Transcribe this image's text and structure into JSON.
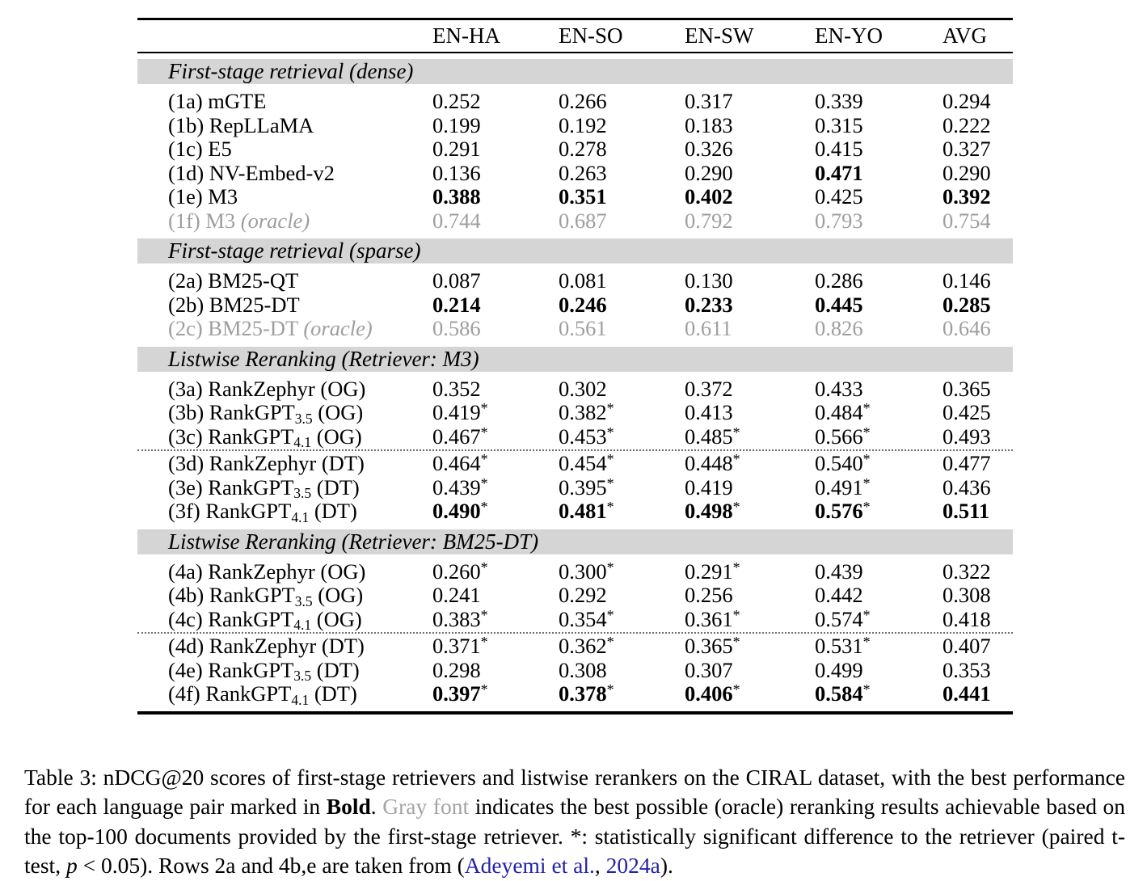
{
  "colors": {
    "section_band_bg": "#d5d5d5",
    "oracle_gray": "#9e9e9e",
    "link_blue": "#2323a8"
  },
  "table": {
    "columns": [
      "EN-HA",
      "EN-SO",
      "EN-SW",
      "EN-YO",
      "AVG"
    ],
    "sections": [
      {
        "header": "First-stage retrieval (dense)",
        "groups": [
          {
            "rows": [
              {
                "label": "(1a) mGTE",
                "sub": "",
                "tail": "",
                "italic_tail": "",
                "gray": false,
                "cells": [
                  {
                    "v": "0.252"
                  },
                  {
                    "v": "0.266"
                  },
                  {
                    "v": "0.317"
                  },
                  {
                    "v": "0.339"
                  },
                  {
                    "v": "0.294"
                  }
                ]
              },
              {
                "label": "(1b) RepLLaMA",
                "sub": "",
                "tail": "",
                "italic_tail": "",
                "gray": false,
                "cells": [
                  {
                    "v": "0.199"
                  },
                  {
                    "v": "0.192"
                  },
                  {
                    "v": "0.183"
                  },
                  {
                    "v": "0.315"
                  },
                  {
                    "v": "0.222"
                  }
                ]
              },
              {
                "label": "(1c) E5",
                "sub": "",
                "tail": "",
                "italic_tail": "",
                "gray": false,
                "cells": [
                  {
                    "v": "0.291"
                  },
                  {
                    "v": "0.278"
                  },
                  {
                    "v": "0.326"
                  },
                  {
                    "v": "0.415"
                  },
                  {
                    "v": "0.327"
                  }
                ]
              },
              {
                "label": "(1d) NV-Embed-v2",
                "sub": "",
                "tail": "",
                "italic_tail": "",
                "gray": false,
                "cells": [
                  {
                    "v": "0.136"
                  },
                  {
                    "v": "0.263"
                  },
                  {
                    "v": "0.290"
                  },
                  {
                    "v": "0.471",
                    "b": true
                  },
                  {
                    "v": "0.290"
                  }
                ]
              },
              {
                "label": "(1e) M3",
                "sub": "",
                "tail": "",
                "italic_tail": "",
                "gray": false,
                "cells": [
                  {
                    "v": "0.388",
                    "b": true
                  },
                  {
                    "v": "0.351",
                    "b": true
                  },
                  {
                    "v": "0.402",
                    "b": true
                  },
                  {
                    "v": "0.425"
                  },
                  {
                    "v": "0.392",
                    "b": true
                  }
                ]
              },
              {
                "label": "(1f) M3 ",
                "sub": "",
                "tail": "",
                "italic_tail": "(oracle)",
                "gray": true,
                "cells": [
                  {
                    "v": "0.744"
                  },
                  {
                    "v": "0.687"
                  },
                  {
                    "v": "0.792"
                  },
                  {
                    "v": "0.793"
                  },
                  {
                    "v": "0.754"
                  }
                ]
              }
            ]
          }
        ]
      },
      {
        "header": "First-stage retrieval (sparse)",
        "groups": [
          {
            "rows": [
              {
                "label": "(2a) BM25-QT",
                "sub": "",
                "tail": "",
                "italic_tail": "",
                "gray": false,
                "cells": [
                  {
                    "v": "0.087"
                  },
                  {
                    "v": "0.081"
                  },
                  {
                    "v": "0.130"
                  },
                  {
                    "v": "0.286"
                  },
                  {
                    "v": "0.146"
                  }
                ]
              },
              {
                "label": "(2b) BM25-DT",
                "sub": "",
                "tail": "",
                "italic_tail": "",
                "gray": false,
                "cells": [
                  {
                    "v": "0.214",
                    "b": true
                  },
                  {
                    "v": "0.246",
                    "b": true
                  },
                  {
                    "v": "0.233",
                    "b": true
                  },
                  {
                    "v": "0.445",
                    "b": true
                  },
                  {
                    "v": "0.285",
                    "b": true
                  }
                ]
              },
              {
                "label": "(2c) BM25-DT ",
                "sub": "",
                "tail": "",
                "italic_tail": "(oracle)",
                "gray": true,
                "cells": [
                  {
                    "v": "0.586"
                  },
                  {
                    "v": "0.561"
                  },
                  {
                    "v": "0.611"
                  },
                  {
                    "v": "0.826"
                  },
                  {
                    "v": "0.646"
                  }
                ]
              }
            ]
          }
        ]
      },
      {
        "header": "Listwise Reranking (Retriever: M3)",
        "groups": [
          {
            "rows": [
              {
                "label": "(3a) RankZephyr (OG)",
                "sub": "",
                "tail": "",
                "italic_tail": "",
                "gray": false,
                "cells": [
                  {
                    "v": "0.352"
                  },
                  {
                    "v": "0.302"
                  },
                  {
                    "v": "0.372"
                  },
                  {
                    "v": "0.433"
                  },
                  {
                    "v": "0.365"
                  }
                ]
              },
              {
                "label": "(3b) RankGPT",
                "sub": "3.5",
                "tail": " (OG)",
                "italic_tail": "",
                "gray": false,
                "cells": [
                  {
                    "v": "0.419",
                    "s": true
                  },
                  {
                    "v": "0.382",
                    "s": true
                  },
                  {
                    "v": "0.413"
                  },
                  {
                    "v": "0.484",
                    "s": true
                  },
                  {
                    "v": "0.425"
                  }
                ]
              },
              {
                "label": "(3c) RankGPT",
                "sub": "4.1",
                "tail": " (OG)",
                "italic_tail": "",
                "gray": false,
                "cells": [
                  {
                    "v": "0.467",
                    "s": true
                  },
                  {
                    "v": "0.453",
                    "s": true
                  },
                  {
                    "v": "0.485",
                    "s": true
                  },
                  {
                    "v": "0.566",
                    "s": true
                  },
                  {
                    "v": "0.493"
                  }
                ]
              }
            ]
          },
          {
            "rows": [
              {
                "label": "(3d) RankZephyr (DT)",
                "sub": "",
                "tail": "",
                "italic_tail": "",
                "gray": false,
                "cells": [
                  {
                    "v": "0.464",
                    "s": true
                  },
                  {
                    "v": "0.454",
                    "s": true
                  },
                  {
                    "v": "0.448",
                    "s": true
                  },
                  {
                    "v": "0.540",
                    "s": true
                  },
                  {
                    "v": "0.477"
                  }
                ]
              },
              {
                "label": "(3e) RankGPT",
                "sub": "3.5",
                "tail": " (DT)",
                "italic_tail": "",
                "gray": false,
                "cells": [
                  {
                    "v": "0.439",
                    "s": true
                  },
                  {
                    "v": "0.395",
                    "s": true
                  },
                  {
                    "v": "0.419"
                  },
                  {
                    "v": "0.491",
                    "s": true
                  },
                  {
                    "v": "0.436"
                  }
                ]
              },
              {
                "label": "(3f) RankGPT",
                "sub": "4.1",
                "tail": " (DT)",
                "italic_tail": "",
                "gray": false,
                "cells": [
                  {
                    "v": "0.490",
                    "b": true,
                    "s": true
                  },
                  {
                    "v": "0.481",
                    "b": true,
                    "s": true
                  },
                  {
                    "v": "0.498",
                    "b": true,
                    "s": true
                  },
                  {
                    "v": "0.576",
                    "b": true,
                    "s": true
                  },
                  {
                    "v": "0.511",
                    "b": true
                  }
                ]
              }
            ]
          }
        ]
      },
      {
        "header": "Listwise Reranking (Retriever: BM25-DT)",
        "groups": [
          {
            "rows": [
              {
                "label": "(4a) RankZephyr (OG)",
                "sub": "",
                "tail": "",
                "italic_tail": "",
                "gray": false,
                "cells": [
                  {
                    "v": "0.260",
                    "s": true
                  },
                  {
                    "v": "0.300",
                    "s": true
                  },
                  {
                    "v": "0.291",
                    "s": true
                  },
                  {
                    "v": "0.439"
                  },
                  {
                    "v": "0.322"
                  }
                ]
              },
              {
                "label": "(4b) RankGPT",
                "sub": "3.5",
                "tail": " (OG)",
                "italic_tail": "",
                "gray": false,
                "cells": [
                  {
                    "v": "0.241"
                  },
                  {
                    "v": "0.292"
                  },
                  {
                    "v": "0.256"
                  },
                  {
                    "v": "0.442"
                  },
                  {
                    "v": "0.308"
                  }
                ]
              },
              {
                "label": "(4c) RankGPT",
                "sub": "4.1",
                "tail": " (OG)",
                "italic_tail": "",
                "gray": false,
                "cells": [
                  {
                    "v": "0.383",
                    "s": true
                  },
                  {
                    "v": "0.354",
                    "s": true
                  },
                  {
                    "v": "0.361",
                    "s": true
                  },
                  {
                    "v": "0.574",
                    "s": true
                  },
                  {
                    "v": "0.418"
                  }
                ]
              }
            ]
          },
          {
            "rows": [
              {
                "label": "(4d) RankZephyr (DT)",
                "sub": "",
                "tail": "",
                "italic_tail": "",
                "gray": false,
                "cells": [
                  {
                    "v": "0.371",
                    "s": true
                  },
                  {
                    "v": "0.362",
                    "s": true
                  },
                  {
                    "v": "0.365",
                    "s": true
                  },
                  {
                    "v": "0.531",
                    "s": true
                  },
                  {
                    "v": "0.407"
                  }
                ]
              },
              {
                "label": "(4e) RankGPT",
                "sub": "3.5",
                "tail": " (DT)",
                "italic_tail": "",
                "gray": false,
                "cells": [
                  {
                    "v": "0.298"
                  },
                  {
                    "v": "0.308"
                  },
                  {
                    "v": "0.307"
                  },
                  {
                    "v": "0.499"
                  },
                  {
                    "v": "0.353"
                  }
                ]
              },
              {
                "label": "(4f) RankGPT",
                "sub": "4.1",
                "tail": " (DT)",
                "italic_tail": "",
                "gray": false,
                "cells": [
                  {
                    "v": "0.397",
                    "b": true,
                    "s": true
                  },
                  {
                    "v": "0.378",
                    "b": true,
                    "s": true
                  },
                  {
                    "v": "0.406",
                    "b": true,
                    "s": true
                  },
                  {
                    "v": "0.584",
                    "b": true,
                    "s": true
                  },
                  {
                    "v": "0.441",
                    "b": true
                  }
                ]
              }
            ]
          }
        ]
      }
    ]
  },
  "caption": {
    "segments": [
      {
        "t": "Table 3: nDCG@20 scores of first-stage retrievers and listwise rerankers on the CIRAL dataset, with the best performance for each language pair marked in ",
        "s": "n"
      },
      {
        "t": "Bold",
        "s": "b"
      },
      {
        "t": ". ",
        "s": "n"
      },
      {
        "t": "Gray font",
        "s": "gray"
      },
      {
        "t": " indicates the best possible (oracle) reranking results achievable based on the top-100 documents provided by the first-stage retriever. ",
        "s": "n"
      },
      {
        "t": "*",
        "s": "n"
      },
      {
        "t": ": statistically significant difference to the retriever (paired t-test, ",
        "s": "n"
      },
      {
        "t": "p",
        "s": "i"
      },
      {
        "t": " < 0.05). Rows 2a and 4b,e are taken from (",
        "s": "n"
      },
      {
        "t": "Adeyemi et al.",
        "s": "link"
      },
      {
        "t": ", ",
        "s": "n"
      },
      {
        "t": "2024a",
        "s": "link"
      },
      {
        "t": ").",
        "s": "n"
      }
    ]
  }
}
